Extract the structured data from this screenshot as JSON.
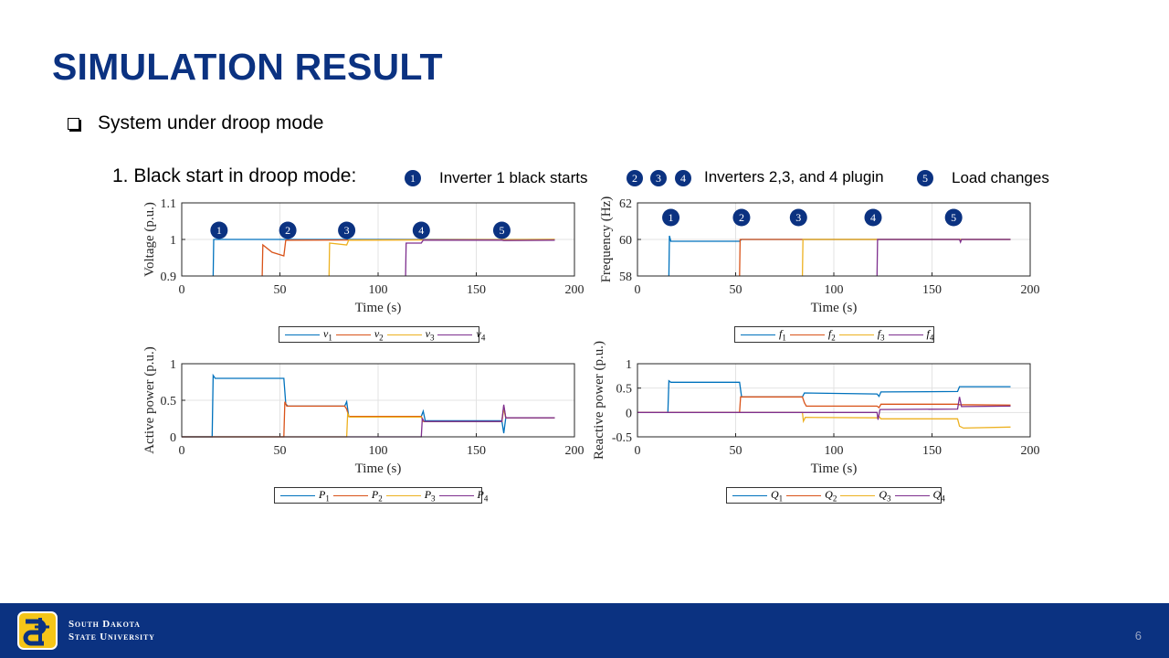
{
  "slide": {
    "title": "SIMULATION RESULT",
    "bullet": "System under droop mode",
    "subheading": "1. Black start in droop mode:",
    "legend": [
      {
        "badges": [
          "1"
        ],
        "text": "Inverter 1 black starts"
      },
      {
        "badges": [
          "2",
          "3",
          "4"
        ],
        "text": "Inverters 2,3, and 4 plugin"
      },
      {
        "badges": [
          "5"
        ],
        "text": "Load changes"
      }
    ],
    "page_number": "6"
  },
  "footer": {
    "university_line1": "South Dakota",
    "university_line2": "State University",
    "logo_icon": "sdsu-logo-icon"
  },
  "colors": {
    "brand_blue": "#0b3281",
    "series": [
      "#0072bd",
      "#d95319",
      "#edb120",
      "#7e2f8e"
    ]
  },
  "chart_data": [
    {
      "type": "line",
      "id": "voltage",
      "xlabel": "Time (s)",
      "ylabel": "Voltage (p.u.)",
      "xlim": [
        0,
        200
      ],
      "ylim": [
        0.9,
        1.1
      ],
      "xticks": [
        "0",
        "50",
        "100",
        "150",
        "200"
      ],
      "yticks": [
        "0.9",
        "1",
        "1.1"
      ],
      "grid": true,
      "markers": [
        {
          "label": "1",
          "x": 19,
          "y": 1.0
        },
        {
          "label": "2",
          "x": 54,
          "y": 1.0
        },
        {
          "label": "3",
          "x": 84,
          "y": 1.0
        },
        {
          "label": "4",
          "x": 122,
          "y": 1.0
        },
        {
          "label": "5",
          "x": 163,
          "y": 1.0
        }
      ],
      "legend_position": "below",
      "series": [
        {
          "name": "v1",
          "points": [
            [
              16,
              0.9
            ],
            [
              16.3,
              1.0
            ],
            [
              190,
              1.0
            ]
          ]
        },
        {
          "name": "v2",
          "points": [
            [
              41,
              0.9
            ],
            [
              41.3,
              0.985
            ],
            [
              46,
              0.965
            ],
            [
              52,
              0.955
            ],
            [
              53,
              0.998
            ],
            [
              190,
              1.0
            ]
          ]
        },
        {
          "name": "v3",
          "points": [
            [
              75,
              0.9
            ],
            [
              75.3,
              0.99
            ],
            [
              84,
              0.985
            ],
            [
              85,
              0.998
            ],
            [
              190,
              1.0
            ]
          ]
        },
        {
          "name": "v4",
          "points": [
            [
              114,
              0.9
            ],
            [
              114.3,
              0.99
            ],
            [
              122,
              0.99
            ],
            [
              123,
              0.998
            ],
            [
              163,
              0.998
            ],
            [
              164,
              0.997
            ],
            [
              190,
              0.998
            ]
          ]
        }
      ]
    },
    {
      "type": "line",
      "id": "frequency",
      "xlabel": "Time (s)",
      "ylabel": "Frequency (Hz)",
      "xlim": [
        0,
        200
      ],
      "ylim": [
        58,
        62
      ],
      "xticks": [
        "0",
        "50",
        "100",
        "150",
        "200"
      ],
      "yticks": [
        "58",
        "60",
        "62"
      ],
      "grid": true,
      "markers": [
        {
          "label": "1",
          "x": 17,
          "y": 60.7
        },
        {
          "label": "2",
          "x": 53,
          "y": 60.7
        },
        {
          "label": "3",
          "x": 82,
          "y": 60.7
        },
        {
          "label": "4",
          "x": 120,
          "y": 60.7
        },
        {
          "label": "5",
          "x": 161,
          "y": 60.7
        }
      ],
      "legend_position": "below",
      "series": [
        {
          "name": "f1",
          "points": [
            [
              16,
              58
            ],
            [
              16.3,
              60.2
            ],
            [
              17,
              59.9
            ],
            [
              52,
              59.9
            ],
            [
              53,
              60.0
            ],
            [
              190,
              60.0
            ]
          ]
        },
        {
          "name": "f2",
          "points": [
            [
              52,
              58
            ],
            [
              52.3,
              60.0
            ],
            [
              190,
              60.0
            ]
          ]
        },
        {
          "name": "f3",
          "points": [
            [
              84,
              58
            ],
            [
              84.3,
              60.0
            ],
            [
              190,
              60.0
            ]
          ]
        },
        {
          "name": "f4",
          "points": [
            [
              122,
              58
            ],
            [
              122.3,
              60.0
            ],
            [
              164,
              60.0
            ],
            [
              164.5,
              59.85
            ],
            [
              165,
              60.0
            ],
            [
              190,
              60.0
            ]
          ]
        }
      ]
    },
    {
      "type": "line",
      "id": "active",
      "xlabel": "Time (s)",
      "ylabel": "Active power (p.u.)",
      "xlim": [
        0,
        200
      ],
      "ylim": [
        0,
        1
      ],
      "xticks": [
        "0",
        "50",
        "100",
        "150",
        "200"
      ],
      "yticks": [
        "0",
        "0.5",
        "1"
      ],
      "grid": true,
      "legend_position": "below",
      "series": [
        {
          "name": "P1",
          "points": [
            [
              0,
              0
            ],
            [
              15.5,
              0
            ],
            [
              16,
              0.84
            ],
            [
              17,
              0.8
            ],
            [
              52,
              0.8
            ],
            [
              53,
              0.45
            ],
            [
              54,
              0.42
            ],
            [
              83,
              0.42
            ],
            [
              84,
              0.48
            ],
            [
              85,
              0.28
            ],
            [
              122,
              0.28
            ],
            [
              123,
              0.35
            ],
            [
              124,
              0.22
            ],
            [
              163,
              0.22
            ],
            [
              164,
              0.05
            ],
            [
              165,
              0.26
            ],
            [
              190,
              0.26
            ]
          ]
        },
        {
          "name": "P2",
          "points": [
            [
              0,
              0
            ],
            [
              52,
              0
            ],
            [
              52.5,
              0.48
            ],
            [
              53.5,
              0.42
            ],
            [
              83,
              0.42
            ],
            [
              84,
              0.38
            ],
            [
              85,
              0.28
            ],
            [
              122,
              0.28
            ],
            [
              123,
              0.21
            ],
            [
              163,
              0.21
            ],
            [
              164,
              0.42
            ],
            [
              165,
              0.26
            ],
            [
              190,
              0.26
            ]
          ]
        },
        {
          "name": "P3",
          "points": [
            [
              0,
              0
            ],
            [
              84,
              0
            ],
            [
              84.5,
              0.32
            ],
            [
              85.5,
              0.27
            ],
            [
              122,
              0.27
            ],
            [
              123,
              0.21
            ],
            [
              163,
              0.21
            ],
            [
              164,
              0.38
            ],
            [
              165,
              0.26
            ],
            [
              190,
              0.26
            ]
          ]
        },
        {
          "name": "P4",
          "points": [
            [
              0,
              0
            ],
            [
              122,
              0
            ],
            [
              122.5,
              0.25
            ],
            [
              123.5,
              0.21
            ],
            [
              163,
              0.21
            ],
            [
              164,
              0.44
            ],
            [
              165,
              0.26
            ],
            [
              190,
              0.26
            ]
          ]
        }
      ]
    },
    {
      "type": "line",
      "id": "reactive",
      "xlabel": "Time (s)",
      "ylabel": "Reactive power (p.u.)",
      "xlim": [
        0,
        200
      ],
      "ylim": [
        -0.5,
        1
      ],
      "xticks": [
        "0",
        "50",
        "100",
        "150",
        "200"
      ],
      "yticks": [
        "-0.5",
        "0",
        "0.5",
        "1"
      ],
      "grid": true,
      "legend_position": "below",
      "series": [
        {
          "name": "Q1",
          "points": [
            [
              0,
              0
            ],
            [
              15.5,
              0
            ],
            [
              16,
              0.65
            ],
            [
              17,
              0.62
            ],
            [
              52,
              0.62
            ],
            [
              53,
              0.32
            ],
            [
              84,
              0.32
            ],
            [
              85,
              0.4
            ],
            [
              122,
              0.38
            ],
            [
              123,
              0.33
            ],
            [
              124,
              0.42
            ],
            [
              163,
              0.43
            ],
            [
              164,
              0.53
            ],
            [
              190,
              0.53
            ]
          ]
        },
        {
          "name": "Q2",
          "points": [
            [
              0,
              0
            ],
            [
              52,
              0
            ],
            [
              52.5,
              0.32
            ],
            [
              84,
              0.32
            ],
            [
              85,
              0.2
            ],
            [
              86,
              0.13
            ],
            [
              122,
              0.13
            ],
            [
              123,
              0.1
            ],
            [
              124,
              0.17
            ],
            [
              163,
              0.17
            ],
            [
              164,
              0.16
            ],
            [
              190,
              0.15
            ]
          ]
        },
        {
          "name": "Q3",
          "points": [
            [
              0,
              0
            ],
            [
              84,
              0
            ],
            [
              84.5,
              -0.18
            ],
            [
              85.5,
              -0.1
            ],
            [
              122,
              -0.11
            ],
            [
              123,
              -0.08
            ],
            [
              124,
              -0.13
            ],
            [
              163,
              -0.13
            ],
            [
              164,
              -0.28
            ],
            [
              166,
              -0.32
            ],
            [
              190,
              -0.3
            ]
          ]
        },
        {
          "name": "Q4",
          "points": [
            [
              0,
              0
            ],
            [
              122,
              0
            ],
            [
              122.5,
              -0.15
            ],
            [
              123.5,
              0.06
            ],
            [
              163,
              0.07
            ],
            [
              164,
              0.32
            ],
            [
              165,
              0.12
            ],
            [
              190,
              0.13
            ]
          ]
        }
      ]
    }
  ],
  "legend_labels": {
    "voltage": [
      "v",
      "v",
      "v",
      "v"
    ],
    "frequency": [
      "f",
      "f",
      "f",
      "f"
    ],
    "active": [
      "P",
      "P",
      "P",
      "P"
    ],
    "reactive": [
      "Q",
      "Q",
      "Q",
      "Q"
    ],
    "subscripts": [
      "1",
      "2",
      "3",
      "4"
    ]
  }
}
